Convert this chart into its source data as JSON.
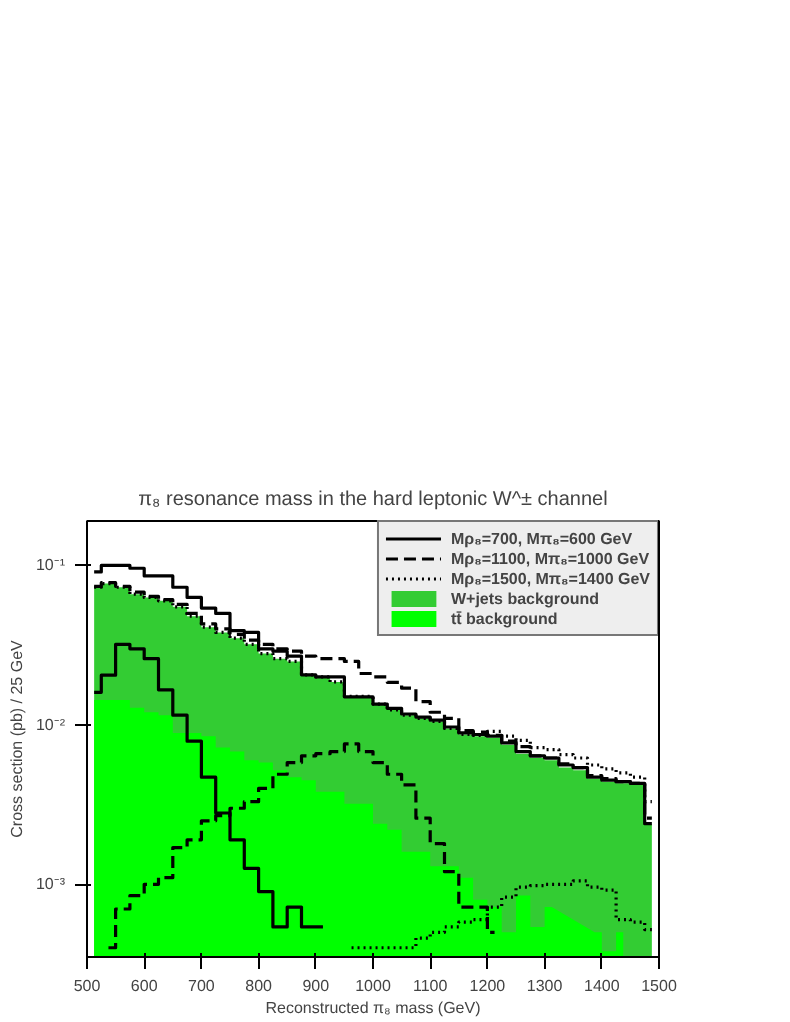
{
  "chart_data": {
    "type": "step",
    "title": "π₈ resonance mass in the hard leptonic W^± channel",
    "xlabel": "Reconstructed π₈ mass (GeV)",
    "ylabel": "Cross section (pb) / 25 GeV",
    "x": [
      512.5,
      537.5,
      562.5,
      587.5,
      612.5,
      637.5,
      662.5,
      687.5,
      712.5,
      737.5,
      762.5,
      787.5,
      812.5,
      837.5,
      862.5,
      887.5,
      912.5,
      937.5,
      962.5,
      987.5,
      1012.5,
      1037.5,
      1062.5,
      1087.5,
      1112.5,
      1137.5,
      1162.5,
      1187.5,
      1212.5,
      1237.5,
      1262.5,
      1287.5,
      1312.5,
      1337.5,
      1362.5,
      1387.5,
      1412.5,
      1437.5,
      1462.5,
      1487.5
    ],
    "log": "y",
    "xlim": [
      500,
      1500
    ],
    "ylim": [
      0.00035,
      0.19
    ],
    "xticks": [
      500,
      600,
      700,
      800,
      900,
      1000,
      1100,
      1200,
      1300,
      1400,
      1500
    ],
    "yticks": [
      {
        "value": 0.001,
        "label": "10⁻³"
      },
      {
        "value": 0.01,
        "label": "10⁻²"
      },
      {
        "value": 0.1,
        "label": "10⁻¹"
      }
    ],
    "grid": false,
    "legend": "top right",
    "series": [
      {
        "name": "W+jets background",
        "type": "area",
        "color": "#33cc33",
        "values": [
          0.073,
          0.077,
          0.073,
          0.066,
          0.063,
          0.06,
          0.055,
          0.048,
          0.041,
          0.038,
          0.035,
          0.032,
          0.028,
          0.026,
          0.025,
          0.0206,
          0.02,
          0.0186,
          0.0151,
          0.0151,
          0.0135,
          0.0124,
          0.0115,
          0.011,
          0.0105,
          0.0095,
          0.0087,
          0.0085,
          0.0083,
          0.0075,
          0.0066,
          0.0062,
          0.006,
          0.0054,
          0.0052,
          0.0046,
          0.0044,
          0.0043,
          0.0042,
          0.0024
        ]
      },
      {
        "name": "tt̄ background",
        "type": "area",
        "color": "#00ff00",
        "values": [
          0.0143,
          0.0143,
          0.0143,
          0.0128,
          0.012,
          0.0115,
          0.0089,
          0.0089,
          0.0085,
          0.0072,
          0.0068,
          0.006,
          0.0058,
          0.0052,
          0.0047,
          0.0045,
          0.0038,
          0.0038,
          0.0032,
          0.0032,
          0.0024,
          0.0022,
          0.0016,
          0.0016,
          0.0013,
          0.0013,
          0.0011,
          0.0008,
          0.00072,
          0.0005,
          0.00085,
          0.00054,
          0.00072,
          null,
          null,
          0.0005,
          0.00038,
          0.0005,
          null,
          null
        ]
      },
      {
        "name": "Mρ₈=700, Mπ₈=600 GeV",
        "color": "#000000",
        "line_style": "solid",
        "values": [
          0.091,
          0.1,
          0.1,
          0.096,
          0.086,
          0.086,
          0.073,
          0.063,
          0.054,
          0.05,
          0.039,
          0.038,
          0.03,
          0.029,
          0.027,
          0.0206,
          0.02,
          0.02,
          0.015,
          0.015,
          0.0135,
          0.0127,
          0.0117,
          0.0112,
          0.0107,
          0.0097,
          0.0089,
          0.0087,
          0.0085,
          0.0077,
          0.0068,
          0.0064,
          0.0062,
          0.0056,
          0.0054,
          0.0047,
          0.0045,
          0.0044,
          0.0043,
          0.0024
        ]
      },
      {
        "color": "#000000",
        "line_style": "solid",
        "values": [
          0.016,
          0.0205,
          0.032,
          0.03,
          0.026,
          0.0166,
          0.0115,
          0.0079,
          0.0047,
          0.0028,
          0.0019,
          0.00126,
          0.0009,
          0.00054,
          0.00072,
          0.00054,
          0.00054,
          null,
          null,
          null,
          null,
          null,
          null,
          null,
          null,
          null,
          null,
          null,
          null,
          null,
          null,
          null,
          null,
          null,
          null,
          null,
          null,
          null,
          null,
          null
        ]
      },
      {
        "name": "Mρ₈=1100, Mπ₈=1000 GeV",
        "color": "#000000",
        "line_style": "dashed",
        "values": [
          0.074,
          0.078,
          0.074,
          0.068,
          0.064,
          0.061,
          0.057,
          0.05,
          0.043,
          0.04,
          0.037,
          0.034,
          0.032,
          0.03,
          0.029,
          0.027,
          0.026,
          0.026,
          0.025,
          0.021,
          0.02,
          0.0185,
          0.017,
          0.014,
          0.012,
          0.011,
          0.0092,
          0.009,
          0.0086,
          0.0079,
          0.0073,
          0.0064,
          0.0062,
          0.0057,
          0.0054,
          0.0048,
          0.0046,
          0.0044,
          0.0043,
          0.0026
        ]
      },
      {
        "color": "#000000",
        "line_style": "dashed",
        "values": [
          null,
          0.0004,
          0.0007,
          0.00085,
          0.001,
          0.0011,
          0.0017,
          0.0019,
          0.0025,
          0.0027,
          0.003,
          0.0033,
          0.004,
          0.0049,
          0.0058,
          0.0064,
          0.0066,
          0.0068,
          0.0076,
          0.0068,
          0.0058,
          0.0049,
          0.0042,
          0.0026,
          0.0018,
          0.0012,
          0.00072,
          0.00072,
          0.0005,
          null,
          null,
          null,
          null,
          null,
          null,
          null,
          null,
          null,
          null,
          null
        ]
      },
      {
        "name": "Mρ₈=1500, Mπ₈=1400 GeV",
        "color": "#000000",
        "line_style": "dotted",
        "values": [
          0.073,
          0.077,
          0.073,
          0.066,
          0.063,
          0.06,
          0.055,
          0.048,
          0.041,
          0.038,
          0.035,
          0.032,
          0.028,
          0.026,
          0.025,
          0.0206,
          0.02,
          0.0186,
          0.0151,
          0.0151,
          0.0135,
          0.0124,
          0.0115,
          0.011,
          0.0105,
          0.0095,
          0.0087,
          0.0086,
          0.0091,
          0.0085,
          0.008,
          0.0072,
          0.007,
          0.0065,
          0.0062,
          0.0056,
          0.0053,
          0.005,
          0.0047,
          0.0033
        ]
      },
      {
        "color": "#000000",
        "line_style": "dotted",
        "values": [
          null,
          null,
          null,
          null,
          null,
          null,
          null,
          null,
          null,
          null,
          null,
          null,
          null,
          null,
          null,
          null,
          null,
          null,
          0.0004,
          0.0004,
          0.0004,
          0.0004,
          0.0004,
          0.00046,
          0.0005,
          0.00054,
          0.00058,
          0.0006,
          0.00072,
          0.00083,
          0.00096,
          0.00098,
          0.001,
          0.001,
          0.00105,
          0.00096,
          0.00092,
          0.0006,
          0.00058,
          0.00052
        ]
      }
    ]
  }
}
